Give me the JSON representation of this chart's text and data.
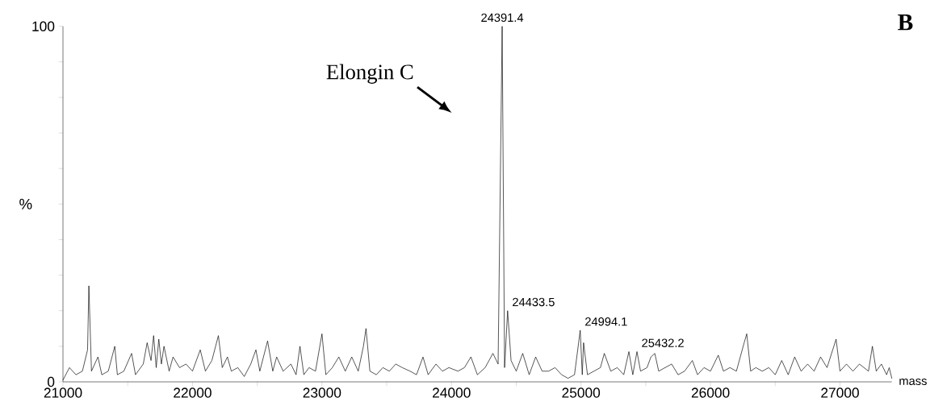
{
  "chart_data": {
    "type": "line",
    "color": "#000000",
    "xlabel": "mass",
    "ylabel": "%",
    "xlim": [
      21000,
      27400
    ],
    "ylim": [
      0,
      100
    ],
    "xticks": [
      21000,
      {
        "value": 21500,
        "label": null
      },
      22000,
      {
        "value": 22500,
        "label": null
      },
      23000,
      {
        "value": 23500,
        "label": null
      },
      24000,
      {
        "value": 24500,
        "label": null
      },
      25000,
      {
        "value": 25500,
        "label": null
      },
      26000,
      {
        "value": 26500,
        "label": null
      },
      27000
    ],
    "yticks": [
      0,
      {
        "value": 10,
        "label": null
      },
      {
        "value": 20,
        "label": null
      },
      {
        "value": 30,
        "label": null
      },
      {
        "value": 40,
        "label": null
      },
      {
        "value": 50,
        "label": null
      },
      {
        "value": 60,
        "label": null
      },
      {
        "value": 70,
        "label": null
      },
      {
        "value": 80,
        "label": null
      },
      {
        "value": 90,
        "label": null
      },
      100
    ],
    "x": [
      21000,
      21050,
      21100,
      21150,
      21190,
      21200,
      21220,
      21270,
      21300,
      21350,
      21400,
      21420,
      21470,
      21530,
      21560,
      21620,
      21650,
      21680,
      21700,
      21720,
      21740,
      21760,
      21780,
      21820,
      21850,
      21900,
      21950,
      22000,
      22060,
      22100,
      22150,
      22200,
      22230,
      22270,
      22300,
      22350,
      22400,
      22450,
      22490,
      22520,
      22580,
      22620,
      22650,
      22700,
      22760,
      22800,
      22830,
      22860,
      22900,
      22950,
      23000,
      23030,
      23080,
      23130,
      23180,
      23230,
      23280,
      23320,
      23340,
      23370,
      23420,
      23470,
      23520,
      23570,
      23620,
      23680,
      23730,
      23780,
      23820,
      23880,
      23930,
      23980,
      24050,
      24100,
      24150,
      24200,
      24260,
      24320,
      24360,
      24391.4,
      24410,
      24433.5,
      24460,
      24500,
      24550,
      24600,
      24650,
      24700,
      24750,
      24800,
      24850,
      24900,
      24950,
      24994.1,
      25010,
      25020,
      25050,
      25100,
      25150,
      25180,
      25230,
      25280,
      25330,
      25370,
      25400,
      25432.2,
      25460,
      25510,
      25540,
      25570,
      25600,
      25650,
      25700,
      25750,
      25800,
      25860,
      25900,
      25950,
      26000,
      26060,
      26100,
      26150,
      26200,
      26260,
      26280,
      26310,
      26350,
      26400,
      26450,
      26500,
      26550,
      26600,
      26650,
      26700,
      26750,
      26800,
      26850,
      26900,
      26970,
      27000,
      27050,
      27100,
      27150,
      27220,
      27250,
      27280,
      27320,
      27360,
      27380,
      27400
    ],
    "values": [
      0.5,
      4,
      2,
      3,
      9,
      27,
      3,
      7,
      2,
      3,
      10,
      2,
      3,
      8,
      2,
      5,
      11,
      6,
      13,
      4,
      12,
      5,
      10,
      3,
      7,
      4,
      5,
      3,
      9,
      3,
      6,
      13,
      4,
      7,
      3,
      4,
      1.5,
      5,
      9,
      3,
      11.5,
      3,
      7,
      3,
      5,
      2,
      10,
      2,
      4,
      3,
      13.5,
      2,
      4,
      7,
      3,
      7,
      3,
      10,
      15,
      3,
      2,
      4,
      3,
      5,
      4,
      3,
      2,
      7,
      2,
      5,
      3,
      4,
      3,
      4,
      7,
      2,
      4,
      8,
      5,
      100,
      4,
      20,
      6,
      3,
      8,
      2,
      7,
      3,
      3,
      4,
      2,
      1,
      2,
      14.5,
      2,
      11,
      2,
      3,
      4,
      8,
      3,
      4,
      2,
      8.5,
      2,
      8.5,
      3,
      4,
      7,
      8,
      3,
      4,
      5,
      2,
      3,
      6,
      2,
      4,
      3,
      7.5,
      3,
      4,
      3,
      11,
      13.5,
      3,
      4,
      3,
      4,
      2,
      6,
      2,
      7,
      3,
      5,
      3,
      7,
      4,
      12,
      3,
      5,
      3,
      5,
      3,
      10,
      3,
      5,
      2,
      4,
      1
    ],
    "annotations": [
      "Elongin C",
      {
        "text": "24391.4",
        "x": 24391.4,
        "y": 100
      },
      {
        "text": "24433.5",
        "x": 24433.5,
        "y": 20
      },
      {
        "text": "24994.1",
        "x": 24994.1,
        "y": 14.5
      },
      {
        "text": "25432.2",
        "x": 25432.2,
        "y": 8.5
      },
      "B"
    ]
  }
}
